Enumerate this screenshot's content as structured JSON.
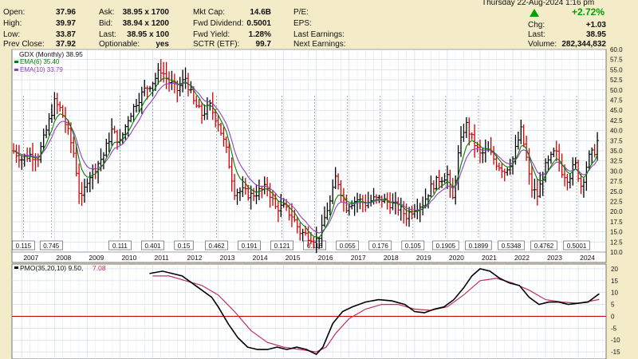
{
  "header": {
    "left": [
      {
        "label": "Open:",
        "value": "37.96"
      },
      {
        "label": "High:",
        "value": "39.97"
      },
      {
        "label": "Low:",
        "value": "33.87"
      },
      {
        "label": "Prev Close:",
        "value": "37.92"
      }
    ],
    "mid": [
      {
        "label": "Ask:",
        "value": "38.95 x 1700"
      },
      {
        "label": "Bid:",
        "value": "38.94 x 1200"
      },
      {
        "label": "Last:",
        "value": "38.95 x 100"
      },
      {
        "label": "Optionable:",
        "value": "yes"
      }
    ],
    "mid2": [
      {
        "label": "Mkt Cap:",
        "value": "14.6B"
      },
      {
        "label": "Fwd Dividend:",
        "value": "0.5001"
      },
      {
        "label": "Fwd Yield:",
        "value": "1.28%"
      },
      {
        "label": "SCTR (ETF):",
        "value": "99.7"
      }
    ],
    "right_labels": [
      "P/E:",
      "EPS:",
      "Last Earnings:",
      "Next Earnings:"
    ],
    "date": "Thursday  22-Aug-2024  1:16 pm",
    "change_pct": "+2.72%",
    "change_label": "Chg:",
    "change_value": "+1.03",
    "last_label": "Last:",
    "last_value": "38.95",
    "volume_label": "Volume:",
    "volume_value": "282,344,832",
    "up_color": "#00a000"
  },
  "legend": {
    "symbol": "GDX (Monthly) 38.95",
    "ema6": "EMA(6) 35.40",
    "ema10": "EMA(10) 33.79"
  },
  "pmo_legend": {
    "label": "PMO(35,20,10) 9.50,",
    "signal": "7.08"
  },
  "colors": {
    "up": "#000000",
    "down": "#d00000",
    "ema6": "#008000",
    "ema10": "#9040c0",
    "pmo": "#000000",
    "pmo_signal": "#c03060",
    "zero_line": "#c00000",
    "grid": "#c8d8e8",
    "dividend_marker": "#777777"
  },
  "chart_data": [
    {
      "type": "ohlc",
      "title": "GDX (Monthly) 38.95",
      "x_ticks": [
        "2007",
        "2008",
        "2009",
        "2010",
        "2011",
        "2012",
        "2013",
        "2014",
        "2015",
        "2016",
        "2017",
        "2018",
        "2019",
        "2020",
        "2021",
        "2022",
        "2023",
        "2024"
      ],
      "y_ticks": [
        "10.0",
        "12.5",
        "15.0",
        "17.5",
        "20.0",
        "22.5",
        "25.0",
        "27.5",
        "30.0",
        "32.5",
        "35.0",
        "37.5",
        "40.0",
        "42.5",
        "45.0",
        "47.5",
        "50.0",
        "52.5",
        "55.0",
        "57.5",
        "60.0"
      ],
      "ylim": [
        10,
        60
      ],
      "xlim": [
        2006.7,
        2024.85
      ],
      "grid": true,
      "series": [
        {
          "name": "GDX (Monthly)",
          "close_points": [
            [
              2006.75,
              35
            ],
            [
              2007.0,
              33
            ],
            [
              2007.25,
              34
            ],
            [
              2007.5,
              33.5
            ],
            [
              2007.75,
              40
            ],
            [
              2008.0,
              47
            ],
            [
              2008.2,
              45
            ],
            [
              2008.4,
              40
            ],
            [
              2008.6,
              34
            ],
            [
              2008.8,
              22
            ],
            [
              2009.0,
              28
            ],
            [
              2009.25,
              31
            ],
            [
              2009.5,
              34
            ],
            [
              2009.75,
              40
            ],
            [
              2010.0,
              37
            ],
            [
              2010.25,
              43
            ],
            [
              2010.5,
              47
            ],
            [
              2010.75,
              50
            ],
            [
              2011.0,
              52
            ],
            [
              2011.25,
              55
            ],
            [
              2011.5,
              52
            ],
            [
              2011.75,
              50
            ],
            [
              2012.0,
              53
            ],
            [
              2012.25,
              47
            ],
            [
              2012.5,
              44
            ],
            [
              2012.75,
              46
            ],
            [
              2013.0,
              42
            ],
            [
              2013.25,
              35
            ],
            [
              2013.5,
              25
            ],
            [
              2013.75,
              25
            ],
            [
              2014.0,
              24
            ],
            [
              2014.25,
              25
            ],
            [
              2014.5,
              26
            ],
            [
              2014.75,
              21
            ],
            [
              2015.0,
              21
            ],
            [
              2015.25,
              19
            ],
            [
              2015.5,
              15
            ],
            [
              2015.75,
              14
            ],
            [
              2016.0,
              13
            ],
            [
              2016.15,
              15
            ],
            [
              2016.3,
              20
            ],
            [
              2016.45,
              23
            ],
            [
              2016.6,
              29
            ],
            [
              2016.75,
              25
            ],
            [
              2016.9,
              21
            ],
            [
              2017.0,
              22
            ],
            [
              2017.25,
              23
            ],
            [
              2017.5,
              22
            ],
            [
              2017.75,
              23
            ],
            [
              2018.0,
              23
            ],
            [
              2018.25,
              22
            ],
            [
              2018.5,
              21
            ],
            [
              2018.75,
              19
            ],
            [
              2019.0,
              21
            ],
            [
              2019.25,
              22
            ],
            [
              2019.5,
              26
            ],
            [
              2019.75,
              28
            ],
            [
              2020.0,
              29
            ],
            [
              2020.15,
              22
            ],
            [
              2020.35,
              35
            ],
            [
              2020.55,
              42
            ],
            [
              2020.75,
              38
            ],
            [
              2021.0,
              34
            ],
            [
              2021.25,
              35
            ],
            [
              2021.5,
              32
            ],
            [
              2021.75,
              30
            ],
            [
              2022.0,
              33
            ],
            [
              2022.25,
              40
            ],
            [
              2022.4,
              34
            ],
            [
              2022.55,
              26
            ],
            [
              2022.75,
              24
            ],
            [
              2023.0,
              31
            ],
            [
              2023.15,
              33
            ],
            [
              2023.3,
              35
            ],
            [
              2023.5,
              30
            ],
            [
              2023.7,
              28
            ],
            [
              2023.9,
              32
            ],
            [
              2024.1,
              26
            ],
            [
              2024.3,
              33
            ],
            [
              2024.5,
              35
            ],
            [
              2024.64,
              38.95
            ]
          ]
        },
        {
          "name": "EMA(6) 35.40",
          "values": []
        },
        {
          "name": "EMA(10) 33.79",
          "values": []
        }
      ],
      "dividends": [
        {
          "x": 2007.05,
          "label": "0.115"
        },
        {
          "x": 2007.9,
          "label": "0.745"
        },
        {
          "x": 2010.0,
          "label": "0.111"
        },
        {
          "x": 2011.0,
          "label": "0.401"
        },
        {
          "x": 2011.95,
          "label": "0.15"
        },
        {
          "x": 2012.95,
          "label": "0.462"
        },
        {
          "x": 2013.95,
          "label": "0.191"
        },
        {
          "x": 2014.95,
          "label": "0.121"
        },
        {
          "x": 2015.95,
          "label": "0.116"
        },
        {
          "x": 2016.95,
          "label": "0.055"
        },
        {
          "x": 2017.95,
          "label": "0.176"
        },
        {
          "x": 2018.95,
          "label": "0.105"
        },
        {
          "x": 2019.95,
          "label": "0.1905"
        },
        {
          "x": 2020.95,
          "label": "0.1899"
        },
        {
          "x": 2021.95,
          "label": "0.5348"
        },
        {
          "x": 2022.95,
          "label": "0.4762"
        },
        {
          "x": 2023.95,
          "label": "0.5001"
        }
      ]
    },
    {
      "type": "line",
      "title": "PMO(35,20,10) 9.50, 7.08",
      "y_ticks": [
        "-15",
        "-10",
        "-5",
        "0",
        "5",
        "10",
        "15",
        "20"
      ],
      "ylim": [
        -18,
        22
      ],
      "grid": true,
      "series": [
        {
          "name": "PMO(35,20,10) 9.50",
          "points": [
            [
              2010.9,
              18
            ],
            [
              2011.3,
              19
            ],
            [
              2011.6,
              18
            ],
            [
              2011.9,
              17
            ],
            [
              2012.2,
              14
            ],
            [
              2012.5,
              11
            ],
            [
              2012.8,
              8
            ],
            [
              2013.0,
              4
            ],
            [
              2013.3,
              -3
            ],
            [
              2013.6,
              -9
            ],
            [
              2013.9,
              -13
            ],
            [
              2014.2,
              -14
            ],
            [
              2014.5,
              -14
            ],
            [
              2014.8,
              -13
            ],
            [
              2015.1,
              -14
            ],
            [
              2015.4,
              -13
            ],
            [
              2015.7,
              -14
            ],
            [
              2016.0,
              -16
            ],
            [
              2016.2,
              -13
            ],
            [
              2016.5,
              -3
            ],
            [
              2016.8,
              2
            ],
            [
              2017.1,
              4
            ],
            [
              2017.5,
              6
            ],
            [
              2017.9,
              7
            ],
            [
              2018.3,
              6.5
            ],
            [
              2018.7,
              5
            ],
            [
              2019.0,
              2
            ],
            [
              2019.3,
              1.5
            ],
            [
              2019.6,
              3
            ],
            [
              2019.9,
              4
            ],
            [
              2020.2,
              7
            ],
            [
              2020.5,
              12
            ],
            [
              2020.75,
              17
            ],
            [
              2021.0,
              20
            ],
            [
              2021.3,
              19
            ],
            [
              2021.6,
              16
            ],
            [
              2021.9,
              14
            ],
            [
              2022.2,
              13
            ],
            [
              2022.5,
              8
            ],
            [
              2022.8,
              5
            ],
            [
              2023.1,
              6
            ],
            [
              2023.4,
              6
            ],
            [
              2023.7,
              5
            ],
            [
              2024.0,
              5.5
            ],
            [
              2024.3,
              6
            ],
            [
              2024.64,
              9.5
            ]
          ]
        },
        {
          "name": "7.08",
          "points": [
            [
              2011.0,
              17
            ],
            [
              2011.5,
              17
            ],
            [
              2012.0,
              15
            ],
            [
              2012.5,
              13
            ],
            [
              2013.0,
              9
            ],
            [
              2013.5,
              2
            ],
            [
              2014.0,
              -6
            ],
            [
              2014.5,
              -11
            ],
            [
              2015.0,
              -13
            ],
            [
              2015.5,
              -14
            ],
            [
              2016.0,
              -15
            ],
            [
              2016.3,
              -13
            ],
            [
              2016.6,
              -7
            ],
            [
              2017.0,
              -1
            ],
            [
              2017.5,
              3
            ],
            [
              2018.0,
              5
            ],
            [
              2018.5,
              5
            ],
            [
              2019.0,
              3
            ],
            [
              2019.5,
              2.5
            ],
            [
              2020.0,
              4
            ],
            [
              2020.5,
              9
            ],
            [
              2021.0,
              15
            ],
            [
              2021.5,
              16
            ],
            [
              2022.0,
              14
            ],
            [
              2022.5,
              11
            ],
            [
              2023.0,
              7
            ],
            [
              2023.5,
              6
            ],
            [
              2024.0,
              5.5
            ],
            [
              2024.64,
              7.08
            ]
          ]
        }
      ]
    }
  ]
}
